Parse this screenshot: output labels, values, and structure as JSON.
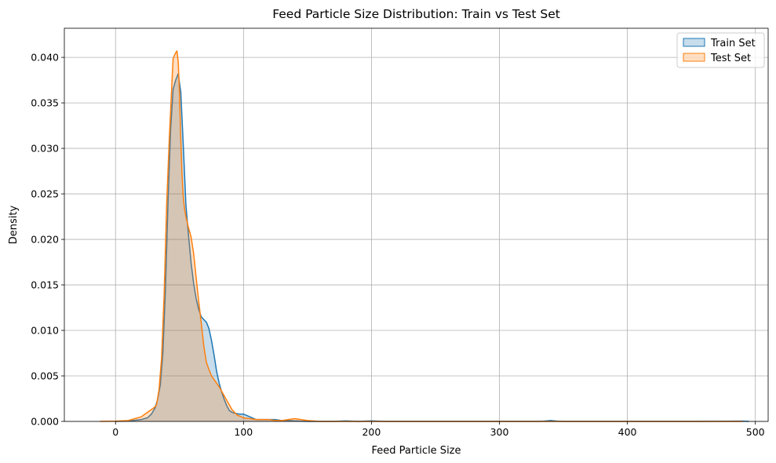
{
  "chart_data": {
    "type": "area",
    "title": "Feed Particle Size Distribution: Train vs Test Set",
    "xlabel": "Feed Particle Size",
    "ylabel": "Density",
    "xlim": [
      -40,
      510
    ],
    "ylim": [
      0,
      0.0432
    ],
    "xticks": [
      0,
      100,
      200,
      300,
      400,
      500
    ],
    "yticks": [
      0.0,
      0.005,
      0.01,
      0.015,
      0.02,
      0.025,
      0.03,
      0.035,
      0.04
    ],
    "ytick_labels": [
      "0.000",
      "0.005",
      "0.010",
      "0.015",
      "0.020",
      "0.025",
      "0.030",
      "0.035",
      "0.040"
    ],
    "grid": true,
    "legend_position": "top-right",
    "series": [
      {
        "name": "Train Set",
        "color": "#1f77b4",
        "fill": "#1f77b4",
        "x": [
          0,
          10,
          20,
          25,
          28,
          31,
          33,
          35,
          37,
          39,
          41,
          43,
          45,
          47,
          49,
          51,
          53,
          55,
          57,
          59,
          61,
          63,
          65,
          67,
          69,
          71,
          73,
          75,
          77,
          79,
          81,
          83,
          85,
          87,
          89,
          91,
          93,
          95,
          97,
          100,
          105,
          110,
          115,
          120,
          125,
          130,
          135,
          140,
          150,
          160,
          170,
          180,
          190,
          200,
          210,
          250,
          300,
          330,
          335,
          340,
          345,
          350,
          400,
          450,
          490,
          495
        ],
        "y": [
          0.0,
          3e-05,
          0.0002,
          0.0004,
          0.0008,
          0.0015,
          0.0025,
          0.004,
          0.0075,
          0.0145,
          0.024,
          0.032,
          0.0365,
          0.0375,
          0.0382,
          0.0362,
          0.0302,
          0.0238,
          0.0205,
          0.0175,
          0.0152,
          0.0135,
          0.0123,
          0.0115,
          0.0112,
          0.0109,
          0.0102,
          0.0089,
          0.0073,
          0.0055,
          0.0042,
          0.0032,
          0.0024,
          0.0017,
          0.0012,
          0.001,
          0.0009,
          0.00085,
          0.0008,
          0.0008,
          0.0005,
          0.0002,
          0.0002,
          0.0002,
          0.0002,
          0.0001,
          0.0001,
          5e-05,
          0.0,
          0.0,
          0.0,
          5e-05,
          0.0,
          5e-05,
          0.0,
          0.0,
          0.0,
          0.0,
          3e-05,
          0.0001,
          3e-05,
          0.0,
          0.0,
          0.0,
          3e-05,
          0.0
        ]
      },
      {
        "name": "Test Set",
        "color": "#ff7f0e",
        "fill": "#ff7f0e",
        "x": [
          -12,
          0,
          10,
          15,
          20,
          25,
          28,
          30,
          32,
          34,
          36,
          38,
          40,
          42,
          44,
          45,
          46,
          47,
          48,
          49,
          50,
          51,
          52,
          53,
          54,
          55,
          57,
          59,
          61,
          63,
          65,
          67,
          69,
          71,
          73,
          75,
          77,
          79,
          81,
          83,
          85,
          87,
          89,
          91,
          93,
          95,
          100,
          110,
          120,
          125,
          130,
          135,
          140,
          145,
          150,
          160,
          180,
          200,
          250,
          300,
          400,
          490
        ],
        "y": [
          0.0,
          3e-05,
          0.0001,
          0.0003,
          0.0005,
          0.001,
          0.0013,
          0.0015,
          0.0018,
          0.0035,
          0.007,
          0.014,
          0.024,
          0.031,
          0.037,
          0.0399,
          0.0402,
          0.0405,
          0.0407,
          0.0395,
          0.036,
          0.031,
          0.027,
          0.0245,
          0.0233,
          0.0225,
          0.0213,
          0.0203,
          0.0185,
          0.0158,
          0.0132,
          0.0108,
          0.0083,
          0.0065,
          0.0057,
          0.005,
          0.0046,
          0.0042,
          0.0038,
          0.0033,
          0.0028,
          0.0023,
          0.0018,
          0.0013,
          0.001,
          0.0007,
          0.0004,
          0.0002,
          0.0002,
          0.0001,
          0.0001,
          0.0002,
          0.0003,
          0.0002,
          0.0001,
          0.0,
          0.0,
          0.0,
          0.0,
          0.0,
          0.0,
          0.0
        ]
      }
    ]
  }
}
